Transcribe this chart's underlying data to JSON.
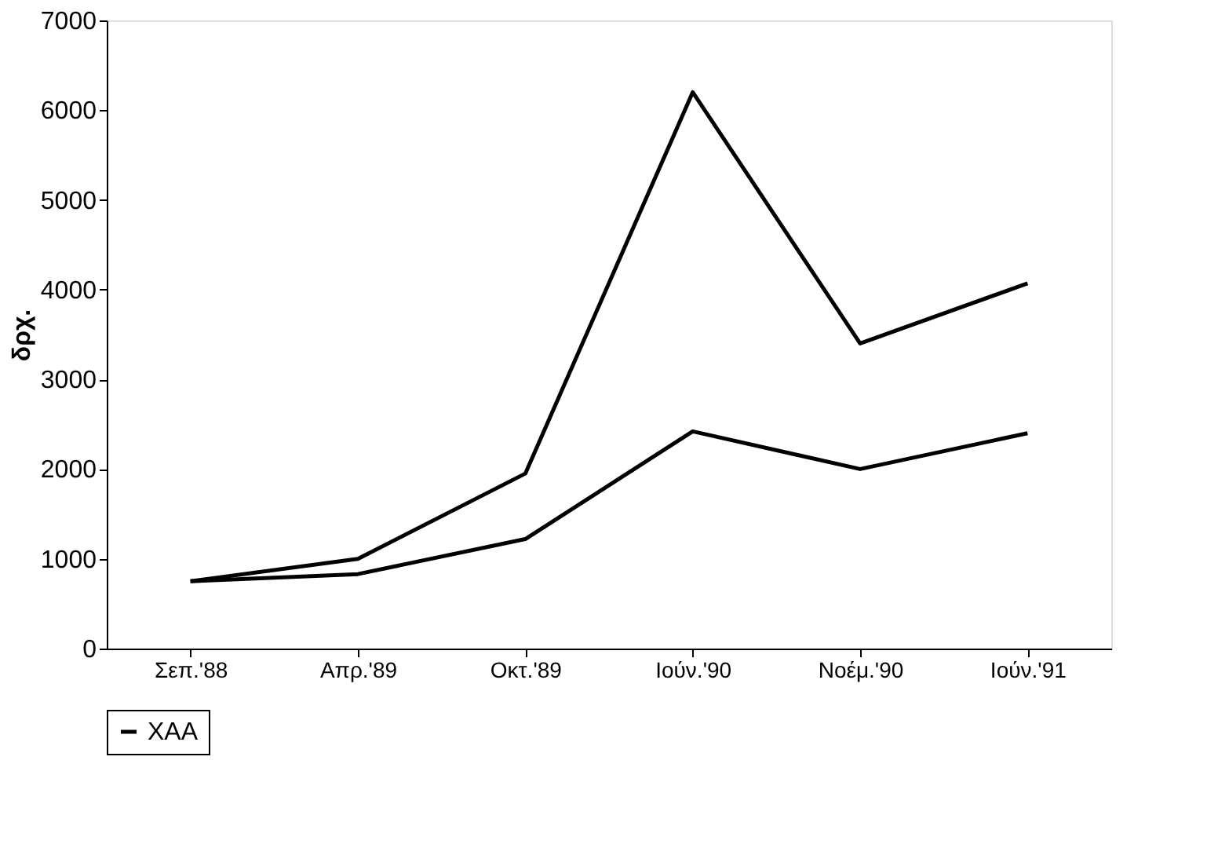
{
  "chart_data": {
    "type": "line",
    "ylabel": "δρχ.",
    "categories": [
      "Σεπ.'88",
      "Απρ.'89",
      "Οκτ.'89",
      "Ιούν.'90",
      "Νοέμ.'90",
      "Ιούν.'91"
    ],
    "series": [
      {
        "name": "ΧΑΑ",
        "color": "#000000",
        "values": [
          750,
          1000,
          1950,
          6200,
          3400,
          4070
        ]
      },
      {
        "color": "#000000",
        "values": [
          750,
          830,
          1220,
          2420,
          2000,
          2400
        ]
      }
    ],
    "ylim": [
      0,
      7000
    ],
    "yticks": [
      0,
      1000,
      2000,
      3000,
      4000,
      5000,
      6000,
      7000
    ],
    "grid": false,
    "legend": "bottom"
  }
}
